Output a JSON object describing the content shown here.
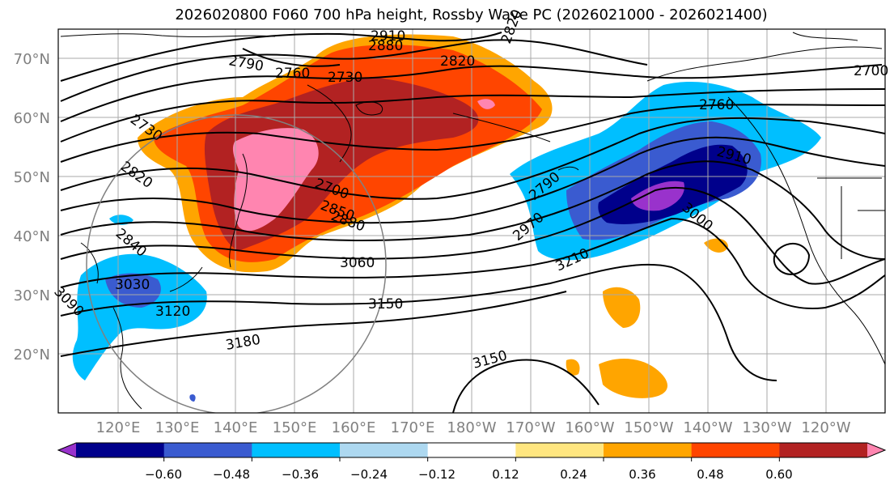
{
  "title": "2026020800 F060 700 hPa height, Rossby Wave PC (2026021000 - 2026021400)",
  "map": {
    "lat_labels": [
      "70°N",
      "60°N",
      "50°N",
      "40°N",
      "30°N",
      "20°N"
    ],
    "lon_labels": [
      "120°E",
      "130°E",
      "140°E",
      "150°E",
      "160°E",
      "170°E",
      "180°W",
      "170°W",
      "160°W",
      "150°W",
      "140°W",
      "130°W",
      "120°W"
    ],
    "contour_labels": [
      "2910",
      "2880",
      "2820",
      "2790",
      "2760",
      "2730",
      "2730",
      "2820",
      "2700",
      "2880",
      "2850",
      "2840",
      "3030",
      "3120",
      "3090",
      "3060",
      "3150",
      "3180",
      "3150",
      "2790",
      "2970",
      "3210",
      "3000",
      "2760",
      "2910",
      "2700",
      "2820"
    ]
  },
  "colorbar": {
    "ticks": [
      "−0.60",
      "−0.48",
      "−0.36",
      "−0.24",
      "−0.12",
      "0.12",
      "0.24",
      "0.36",
      "0.48",
      "0.60"
    ],
    "colors": [
      "#9932cc",
      "#00008b",
      "#3a5bd0",
      "#00bfff",
      "#add8f0",
      "#ffffff",
      "#ffe680",
      "#ffa500",
      "#ff4500",
      "#b22222",
      "#ff85b0"
    ]
  }
}
